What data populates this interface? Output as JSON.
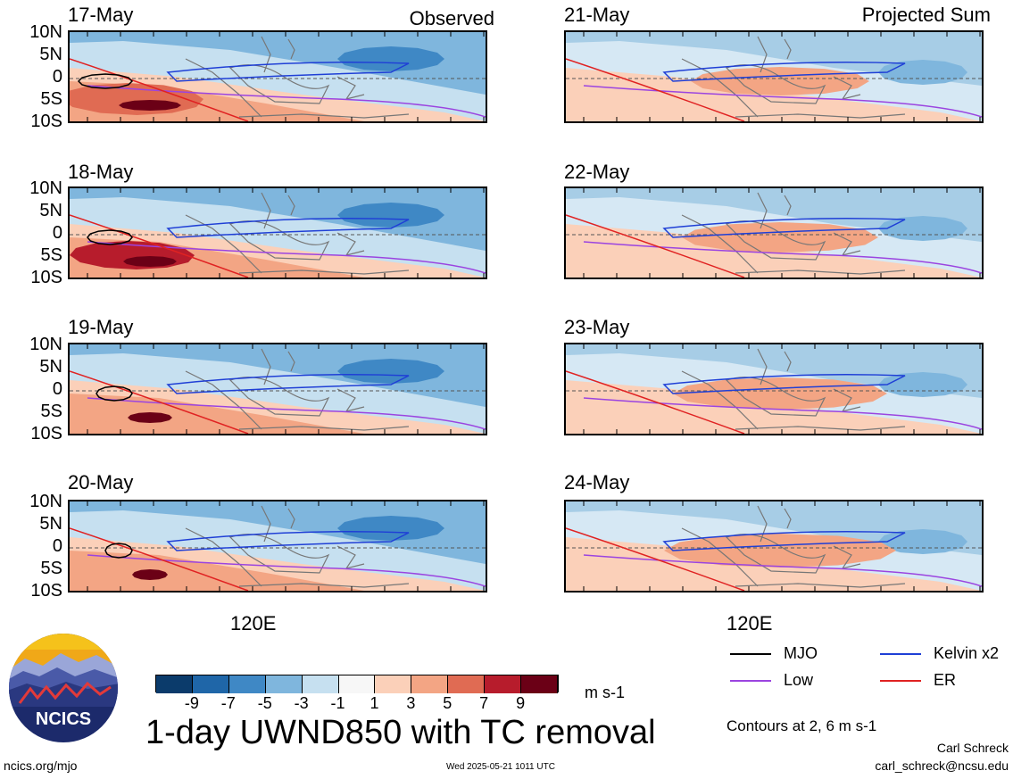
{
  "chart_data": {
    "type": "heatmap",
    "title": "1-day UWND850 with TC removal",
    "units": "m s-1",
    "observed_label": "Observed",
    "projected_label": "Projected Sum",
    "y_ticks": [
      "10N",
      "5N",
      "0",
      "5S",
      "10S"
    ],
    "x_tick": "120E",
    "panels": [
      {
        "date": "17-May",
        "column": "left"
      },
      {
        "date": "18-May",
        "column": "left"
      },
      {
        "date": "19-May",
        "column": "left"
      },
      {
        "date": "20-May",
        "column": "left"
      },
      {
        "date": "21-May",
        "column": "right"
      },
      {
        "date": "22-May",
        "column": "right"
      },
      {
        "date": "23-May",
        "column": "right"
      },
      {
        "date": "24-May",
        "column": "right"
      }
    ],
    "colorbar": {
      "labels": [
        "-9",
        "-7",
        "-5",
        "-3",
        "-1",
        "1",
        "3",
        "5",
        "7",
        "9"
      ],
      "colors": [
        "#0b3b6b",
        "#1f66a8",
        "#3f88c5",
        "#7fb6dd",
        "#c6e0f0",
        "#f7f7f7",
        "#fbd0b9",
        "#f3a584",
        "#e06b53",
        "#b71c2c",
        "#6b0016"
      ]
    },
    "legend": [
      {
        "label": "MJO",
        "color": "#000000"
      },
      {
        "label": "Kelvin x2",
        "color": "#1f3fd6"
      },
      {
        "label": "Low",
        "color": "#9b44e0"
      },
      {
        "label": "ER",
        "color": "#e02222"
      }
    ],
    "contours_note": "Contours at 2, 6 m s-1"
  },
  "footer": {
    "logo_text": "NCICS",
    "url": "ncics.org/mjo",
    "timestamp": "Wed 2025-05-21 1011 UTC",
    "author": "Carl Schreck",
    "email": "carl_schreck@ncsu.edu"
  }
}
